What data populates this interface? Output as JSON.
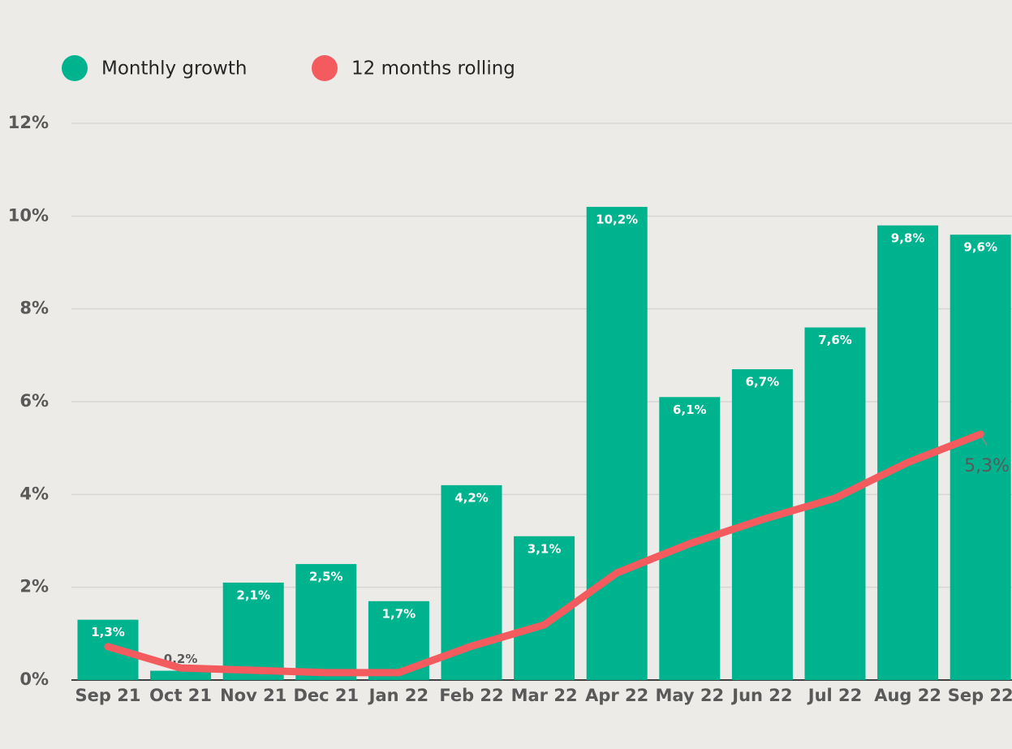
{
  "chart_data": {
    "type": "bar",
    "categories": [
      "Sep 21",
      "Oct 21",
      "Nov 21",
      "Dec 21",
      "Jan 22",
      "Feb 22",
      "Mar 22",
      "Apr 22",
      "May 22",
      "Jun 22",
      "Jul 22",
      "Aug 22",
      "Sep 22"
    ],
    "series": [
      {
        "name": "Monthly growth",
        "type": "bar",
        "color": "#00b38f",
        "values": [
          1.3,
          0.2,
          2.1,
          2.5,
          1.7,
          4.2,
          3.1,
          10.2,
          6.1,
          6.7,
          7.6,
          9.8,
          9.6
        ],
        "value_labels": [
          "1,3%",
          "0,2%",
          "2,1%",
          "2,5%",
          "1,7%",
          "4,2%",
          "3,1%",
          "10,2%",
          "6,1%",
          "6,7%",
          "7,6%",
          "9,8%",
          "9,6%"
        ]
      },
      {
        "name": "12 months rolling",
        "type": "line",
        "color": "#f45b5f",
        "values": [
          0.72,
          0.26,
          0.21,
          0.16,
          0.16,
          0.73,
          1.19,
          2.31,
          2.94,
          3.46,
          3.92,
          4.69,
          5.3
        ],
        "value_labels": [
          null,
          null,
          null,
          null,
          null,
          null,
          null,
          null,
          null,
          null,
          null,
          null,
          "5,3%"
        ]
      }
    ],
    "ylim": [
      0,
      12
    ],
    "yticks": [
      {
        "value": 0,
        "label": "0%"
      },
      {
        "value": 2,
        "label": "2%"
      },
      {
        "value": 4,
        "label": "4%"
      },
      {
        "value": 6,
        "label": "6%"
      },
      {
        "value": 8,
        "label": "8%"
      },
      {
        "value": 10,
        "label": "10%"
      },
      {
        "value": 12,
        "label": "12%"
      }
    ],
    "grid": true,
    "legend": "top-left"
  }
}
